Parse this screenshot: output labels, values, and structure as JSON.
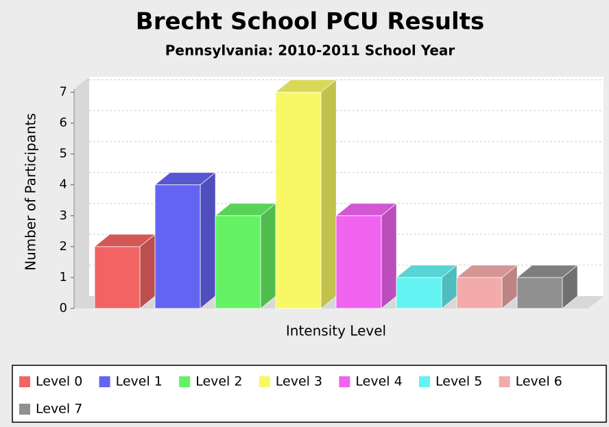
{
  "chart_data": {
    "type": "bar3d",
    "title": "Brecht School PCU Results",
    "subtitle": "Pennsylvania: 2010-2011 School Year",
    "y_label": "Number of Participants",
    "x_label": "Intensity Level",
    "ylim": [
      0,
      7.1
    ],
    "yticks": [
      0,
      1,
      2,
      3,
      4,
      5,
      6,
      7
    ],
    "grid": true,
    "legend": "bottom",
    "series": [
      {
        "name": "Level 0",
        "color": "#f26464",
        "values": [
          2
        ]
      },
      {
        "name": "Level 1",
        "color": "#6464f2",
        "values": [
          4
        ]
      },
      {
        "name": "Level 2",
        "color": "#64f264",
        "values": [
          3
        ]
      },
      {
        "name": "Level 3",
        "color": "#f8f864",
        "values": [
          7
        ]
      },
      {
        "name": "Level 4",
        "color": "#f064f0",
        "values": [
          3
        ]
      },
      {
        "name": "Level 5",
        "color": "#64f2f2",
        "values": [
          1
        ]
      },
      {
        "name": "Level 6",
        "color": "#f2aaaa",
        "values": [
          1
        ]
      },
      {
        "name": "Level 7",
        "color": "#909090",
        "values": [
          1
        ]
      }
    ]
  }
}
